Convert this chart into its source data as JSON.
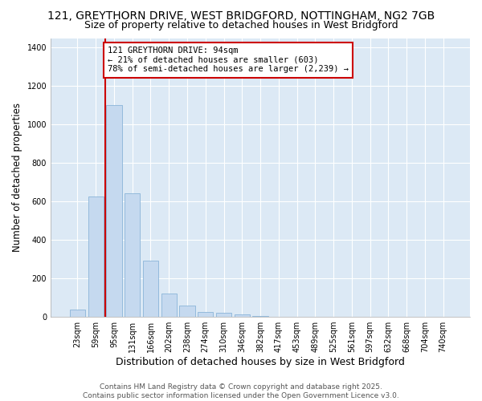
{
  "title_line1": "121, GREYTHORN DRIVE, WEST BRIDGFORD, NOTTINGHAM, NG2 7GB",
  "title_line2": "Size of property relative to detached houses in West Bridgford",
  "xlabel": "Distribution of detached houses by size in West Bridgford",
  "ylabel": "Number of detached properties",
  "categories": [
    "23sqm",
    "59sqm",
    "95sqm",
    "131sqm",
    "166sqm",
    "202sqm",
    "238sqm",
    "274sqm",
    "310sqm",
    "346sqm",
    "382sqm",
    "417sqm",
    "453sqm",
    "489sqm",
    "525sqm",
    "561sqm",
    "597sqm",
    "632sqm",
    "668sqm",
    "704sqm",
    "740sqm"
  ],
  "values": [
    35,
    625,
    1100,
    640,
    290,
    120,
    55,
    25,
    20,
    10,
    3,
    0,
    0,
    0,
    0,
    0,
    0,
    0,
    0,
    0,
    0
  ],
  "bar_color": "#c5d9ef",
  "bar_edge_color": "#8ab4d8",
  "vline_color": "#cc0000",
  "annotation_text": "121 GREYTHORN DRIVE: 94sqm\n← 21% of detached houses are smaller (603)\n78% of semi-detached houses are larger (2,239) →",
  "annotation_box_color": "#cc0000",
  "annotation_bg": "#ffffff",
  "ylim": [
    0,
    1450
  ],
  "yticks": [
    0,
    200,
    400,
    600,
    800,
    1000,
    1200,
    1400
  ],
  "fig_bg": "#ffffff",
  "plot_bg": "#dce9f5",
  "grid_color": "#ffffff",
  "footer_line1": "Contains HM Land Registry data © Crown copyright and database right 2025.",
  "footer_line2": "Contains public sector information licensed under the Open Government Licence v3.0.",
  "title_fontsize": 10,
  "subtitle_fontsize": 9,
  "xlabel_fontsize": 9,
  "ylabel_fontsize": 8.5,
  "tick_fontsize": 7,
  "footer_fontsize": 6.5,
  "annotation_fontsize": 7.5
}
